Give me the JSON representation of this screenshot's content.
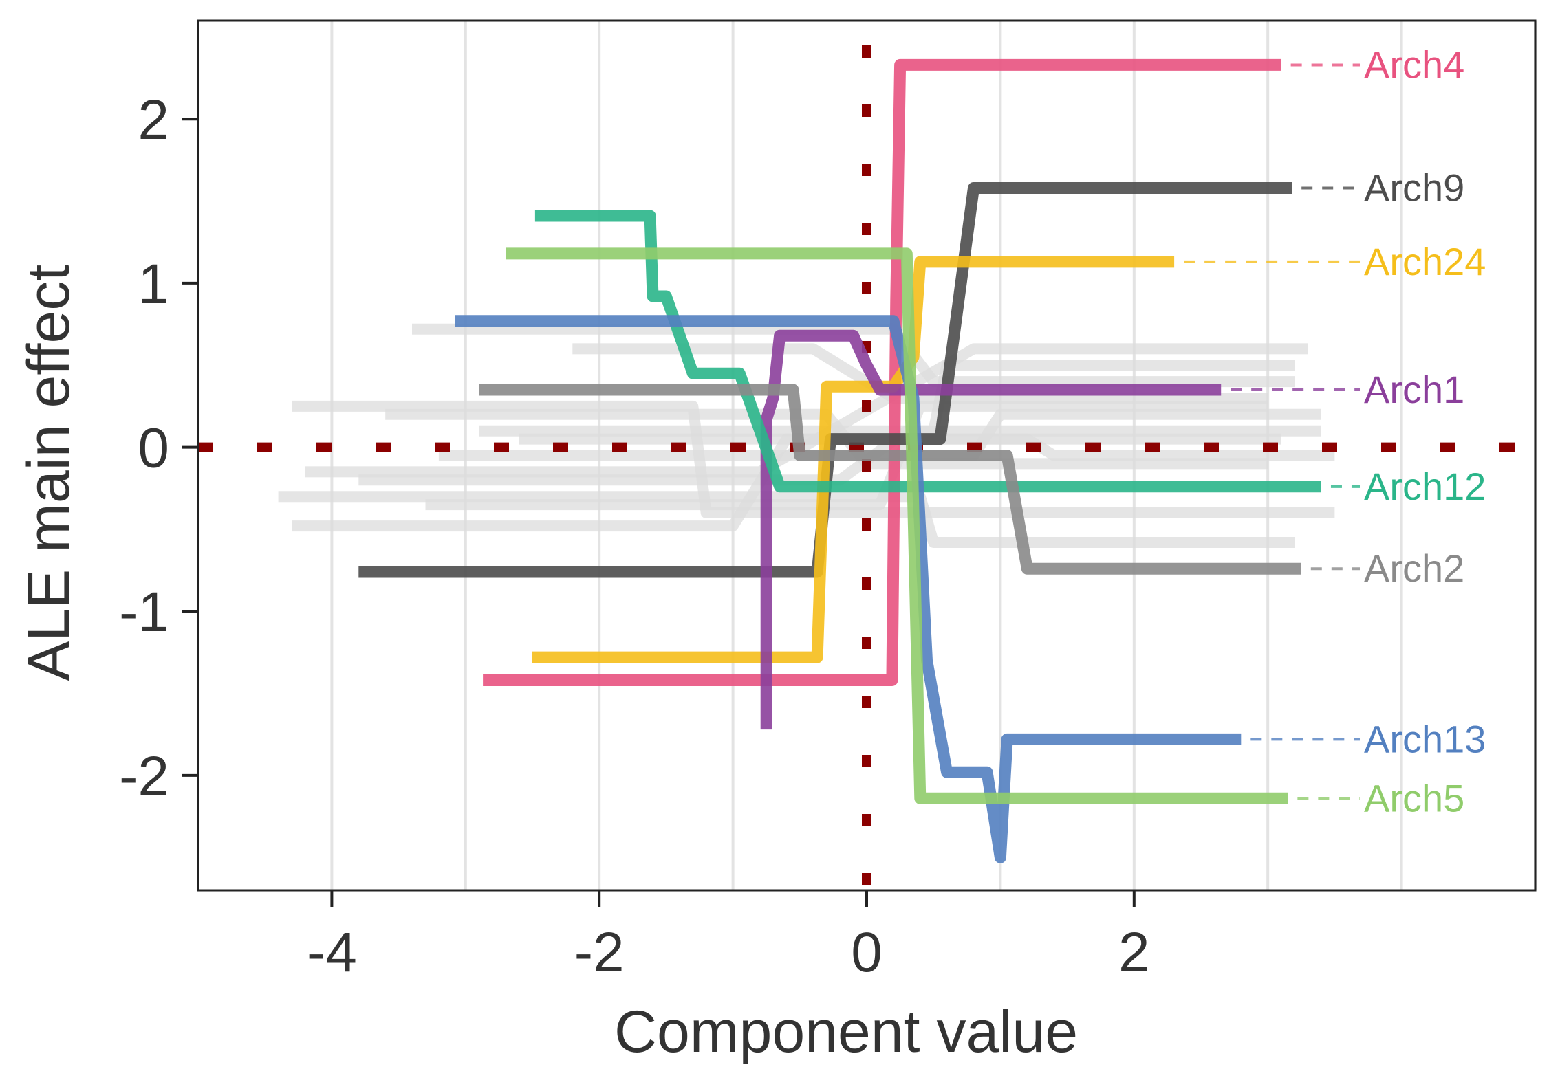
{
  "chart_data": {
    "type": "line",
    "title": "",
    "xlabel": "Component value",
    "ylabel": "ALE main effect",
    "xlim": [
      -5,
      5
    ],
    "ylim": [
      -2.7,
      2.6
    ],
    "xticks": [
      -4,
      -2,
      0,
      2
    ],
    "yticks": [
      -2,
      -1,
      0,
      1,
      2
    ],
    "xtick_labels": [
      "-4",
      "-2",
      "0",
      "2"
    ],
    "ytick_labels": [
      "-2",
      "-1",
      "0",
      "1",
      "2"
    ],
    "grid": "vertical",
    "reference_lines": [
      {
        "orientation": "vertical",
        "value": 0,
        "style": "dotted",
        "color": "#8b0000"
      },
      {
        "orientation": "horizontal",
        "value": 0,
        "style": "dotted",
        "color": "#8b0000"
      }
    ],
    "background_series": [
      {
        "x": [
          -3.4,
          0.2,
          0.5,
          3.2
        ],
        "y": [
          0.72,
          0.72,
          0.4,
          0.4
        ]
      },
      {
        "x": [
          -2.2,
          -0.4,
          0.2,
          3.0
        ],
        "y": [
          0.6,
          0.6,
          0.3,
          0.3
        ]
      },
      {
        "x": [
          -4.3,
          -1.3,
          -1.2,
          3.5
        ],
        "y": [
          0.25,
          0.25,
          -0.4,
          -0.4
        ]
      },
      {
        "x": [
          -4.2,
          -0.8,
          0.8,
          3.3
        ],
        "y": [
          -0.15,
          -0.15,
          0.6,
          0.6
        ]
      },
      {
        "x": [
          -3.8,
          -0.2,
          0.3,
          3.4
        ],
        "y": [
          -0.2,
          -0.2,
          0.1,
          0.1
        ]
      },
      {
        "x": [
          -4.4,
          0.4,
          0.5,
          3.2
        ],
        "y": [
          -0.3,
          -0.3,
          -0.58,
          -0.58
        ]
      },
      {
        "x": [
          -4.3,
          -1.0,
          -0.6,
          3.1
        ],
        "y": [
          -0.48,
          -0.48,
          0.05,
          0.05
        ]
      },
      {
        "x": [
          -3.6,
          -0.3,
          0.0,
          3.0
        ],
        "y": [
          0.2,
          0.2,
          -0.1,
          -0.1
        ]
      },
      {
        "x": [
          -3.2,
          0.8,
          1.0,
          3.4
        ],
        "y": [
          -0.05,
          -0.05,
          0.2,
          0.2
        ]
      },
      {
        "x": [
          -2.9,
          0.5,
          0.6,
          3.2
        ],
        "y": [
          0.1,
          0.1,
          0.5,
          0.5
        ]
      },
      {
        "x": [
          -3.3,
          0.1,
          0.4,
          3.0
        ],
        "y": [
          -0.35,
          -0.35,
          0.25,
          0.25
        ]
      },
      {
        "x": [
          -2.6,
          1.2,
          1.4,
          3.5
        ],
        "y": [
          0.05,
          0.05,
          -0.05,
          -0.05
        ]
      }
    ],
    "series": [
      {
        "name": "Arch4",
        "color": "#e8527f",
        "label_y": 2.33,
        "x": [
          -2.87,
          0.19,
          0.22,
          0.25,
          3.1
        ],
        "y": [
          -1.42,
          -1.42,
          0.9,
          2.33,
          2.33
        ]
      },
      {
        "name": "Arch9",
        "color": "#4d4d4d",
        "label_y": 1.58,
        "x": [
          -3.8,
          -0.37,
          -0.27,
          0.55,
          0.8,
          3.18
        ],
        "y": [
          -0.76,
          -0.76,
          0.05,
          0.05,
          1.58,
          1.58
        ]
      },
      {
        "name": "Arch24",
        "color": "#f5be1b",
        "label_y": 1.13,
        "x": [
          -2.5,
          -0.37,
          -0.3,
          0.2,
          0.35,
          0.4,
          0.45,
          2.3
        ],
        "y": [
          -1.28,
          -1.28,
          0.37,
          0.37,
          0.55,
          1.13,
          1.13,
          1.13
        ]
      },
      {
        "name": "Arch1",
        "color": "#8b3f9b",
        "label_y": 0.35,
        "x": [
          -0.75,
          -0.75,
          -0.7,
          -0.65,
          -0.6,
          -0.1,
          0.0,
          0.1,
          2.65
        ],
        "y": [
          -1.72,
          0.17,
          0.3,
          0.68,
          0.68,
          0.68,
          0.5,
          0.35,
          0.35
        ]
      },
      {
        "name": "Arch12",
        "color": "#2ab589",
        "label_y": -0.24,
        "x": [
          -2.48,
          -1.62,
          -1.6,
          -1.5,
          -1.3,
          -0.95,
          -0.65,
          3.4
        ],
        "y": [
          1.41,
          1.41,
          0.92,
          0.92,
          0.45,
          0.45,
          -0.24,
          -0.24
        ]
      },
      {
        "name": "Arch2",
        "color": "#8a8a8a",
        "label_y": -0.74,
        "x": [
          -2.9,
          -0.55,
          -0.5,
          1.05,
          1.2,
          3.25
        ],
        "y": [
          0.35,
          0.35,
          -0.05,
          -0.05,
          -0.74,
          -0.74
        ]
      },
      {
        "name": "Arch13",
        "color": "#5380c0",
        "label_y": -1.78,
        "x": [
          -3.08,
          0.2,
          0.35,
          0.45,
          0.6,
          0.9,
          1.0,
          1.05,
          2.8
        ],
        "y": [
          0.77,
          0.77,
          0.3,
          -1.3,
          -1.98,
          -1.98,
          -2.5,
          -1.78,
          -1.78
        ]
      },
      {
        "name": "Arch5",
        "color": "#90cc6b",
        "label_y": -2.14,
        "x": [
          -2.7,
          0.3,
          0.35,
          0.4,
          3.15
        ],
        "y": [
          1.18,
          1.18,
          -0.4,
          -2.14,
          -2.14
        ]
      }
    ],
    "legend": "right-edge labels with dashed connectors"
  }
}
